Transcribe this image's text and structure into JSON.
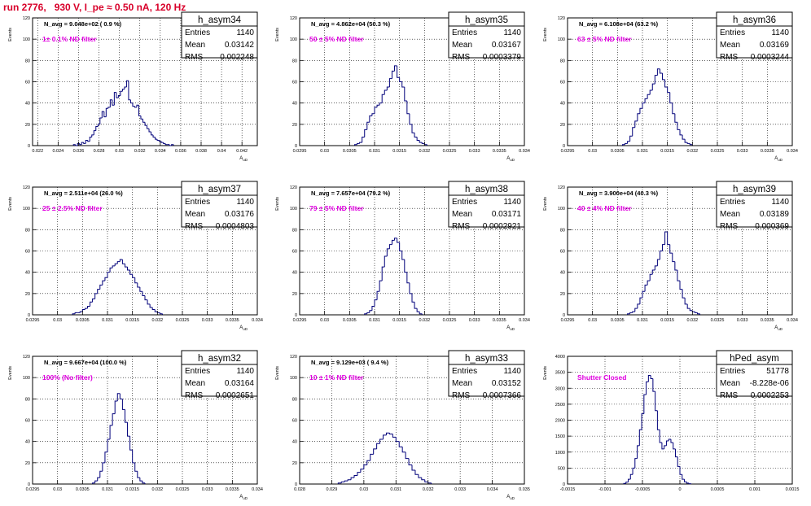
{
  "title": "run 2776,   930 V, I_pe ≈ 0.50 nA, 120 Hz",
  "colors": {
    "title": "#d8002a",
    "annotation": "#e000e0",
    "histogram": "#00007a",
    "grid": "#000000"
  },
  "chart_data": [
    {
      "type": "histogram",
      "name": "h_asym34",
      "navg": "N_avg = 9.048e+02 ( 0.9 %)",
      "filter": "1± 0.1% ND filter",
      "stats": {
        "entries": "1140",
        "mean": "0.03142",
        "rms": "0.002248"
      },
      "xlabel": "A_uD",
      "ylabel": "Events",
      "xlim": [
        0.0215,
        0.0435
      ],
      "ylim": [
        0,
        120
      ],
      "xticks": [
        0.022,
        0.024,
        0.026,
        0.028,
        0.03,
        0.032,
        0.034,
        0.036,
        0.038,
        0.04,
        0.042
      ],
      "xtick_labels": [
        "0.022",
        "0.024",
        "0.026",
        "0.028",
        "0.03",
        "0.032",
        "0.034",
        "0.036",
        "0.038",
        "0.04",
        "0.042"
      ],
      "yticks": [
        0,
        20,
        40,
        60,
        80,
        100,
        120
      ],
      "bins": {
        "start": 0.0255,
        "width": 0.0002,
        "counts": [
          1,
          0,
          2,
          1,
          3,
          2,
          5,
          4,
          8,
          10,
          14,
          18,
          20,
          26,
          32,
          27,
          35,
          36,
          43,
          38,
          50,
          45,
          47,
          51,
          53,
          55,
          61,
          43,
          40,
          37,
          36,
          38,
          28,
          25,
          22,
          19,
          16,
          13,
          10,
          8,
          6,
          5,
          4,
          3,
          2,
          1,
          1,
          0,
          1
        ]
      }
    },
    {
      "type": "histogram",
      "name": "h_asym35",
      "navg": "N_avg = 4.862e+04 (50.3 %)",
      "filter": "50 ± 5% ND filter",
      "stats": {
        "entries": "1140",
        "mean": "0.03167",
        "rms": "0.0003379"
      },
      "xlabel": "A_uD",
      "ylabel": "Events",
      "xlim": [
        0.0295,
        0.034
      ],
      "ylim": [
        0,
        120
      ],
      "xticks": [
        0.0295,
        0.03,
        0.0305,
        0.031,
        0.0315,
        0.032,
        0.0325,
        0.033,
        0.0335,
        0.034
      ],
      "xtick_labels": [
        "0.0295",
        "0.03",
        "0.0305",
        "0.031",
        "0.0315",
        "0.032",
        "0.0325",
        "0.033",
        "0.0335",
        "0.034"
      ],
      "yticks": [
        0,
        20,
        40,
        60,
        80,
        100,
        120
      ],
      "bins": {
        "start": 0.0306,
        "width": 5e-05,
        "counts": [
          1,
          2,
          3,
          8,
          15,
          22,
          28,
          30,
          36,
          38,
          40,
          48,
          52,
          55,
          63,
          70,
          75,
          64,
          60,
          55,
          42,
          30,
          20,
          12,
          8,
          5,
          3,
          2,
          1
        ]
      }
    },
    {
      "type": "histogram",
      "name": "h_asym36",
      "navg": "N_avg = 6.108e+04 (63.2 %)",
      "filter": "63 ± 5% ND filter",
      "stats": {
        "entries": "1140",
        "mean": "0.03169",
        "rms": "0.0003244"
      },
      "xlabel": "A_uD",
      "ylabel": "Events",
      "xlim": [
        0.0295,
        0.034
      ],
      "ylim": [
        0,
        120
      ],
      "xticks": [
        0.0295,
        0.03,
        0.0305,
        0.031,
        0.0315,
        0.032,
        0.0325,
        0.033,
        0.0335,
        0.034
      ],
      "xtick_labels": [
        "0.0295",
        "0.03",
        "0.0305",
        "0.031",
        "0.0315",
        "0.032",
        "0.0325",
        "0.033",
        "0.0335",
        "0.034"
      ],
      "yticks": [
        0,
        20,
        40,
        60,
        80,
        100,
        120
      ],
      "bins": {
        "start": 0.0306,
        "width": 5e-05,
        "counts": [
          1,
          2,
          4,
          9,
          17,
          23,
          30,
          35,
          40,
          44,
          48,
          52,
          58,
          66,
          72,
          68,
          62,
          55,
          50,
          40,
          30,
          22,
          15,
          10,
          6,
          3,
          2,
          1
        ]
      }
    },
    {
      "type": "histogram",
      "name": "h_asym37",
      "navg": "N_avg = 2.511e+04 (26.0 %)",
      "filter": "25 ± 2.5% ND filter",
      "stats": {
        "entries": "1140",
        "mean": "0.03176",
        "rms": "0.0004803"
      },
      "xlabel": "A_uD",
      "ylabel": "Events",
      "xlim": [
        0.0295,
        0.034
      ],
      "ylim": [
        0,
        120
      ],
      "xticks": [
        0.0295,
        0.03,
        0.0305,
        0.031,
        0.0315,
        0.032,
        0.0325,
        0.033,
        0.0335,
        0.034
      ],
      "xtick_labels": [
        "0.0295",
        "0.03",
        "0.0305",
        "0.031",
        "0.0315",
        "0.032",
        "0.0325",
        "0.033",
        "0.0335",
        "0.034"
      ],
      "yticks": [
        0,
        20,
        40,
        60,
        80,
        100,
        120
      ],
      "bins": {
        "start": 0.0303,
        "width": 5e-05,
        "counts": [
          1,
          2,
          2,
          3,
          5,
          6,
          8,
          12,
          15,
          20,
          24,
          28,
          32,
          35,
          40,
          44,
          46,
          48,
          50,
          52,
          48,
          45,
          42,
          38,
          35,
          30,
          26,
          22,
          18,
          14,
          10,
          7,
          5,
          3,
          2,
          1
        ]
      }
    },
    {
      "type": "histogram",
      "name": "h_asym38",
      "navg": "N_avg = 7.657e+04 (79.2 %)",
      "filter": "79 ± 5% ND filter",
      "stats": {
        "entries": "1140",
        "mean": "0.03171",
        "rms": "0.0002921"
      },
      "xlabel": "A_uD",
      "ylabel": "Events",
      "xlim": [
        0.0295,
        0.034
      ],
      "ylim": [
        0,
        120
      ],
      "xticks": [
        0.0295,
        0.03,
        0.0305,
        0.031,
        0.0315,
        0.032,
        0.0325,
        0.033,
        0.0335,
        0.034
      ],
      "xtick_labels": [
        "0.0295",
        "0.03",
        "0.0305",
        "0.031",
        "0.0315",
        "0.032",
        "0.0325",
        "0.033",
        "0.0335",
        "0.034"
      ],
      "yticks": [
        0,
        20,
        40,
        60,
        80,
        100,
        120
      ],
      "bins": {
        "start": 0.0308,
        "width": 5e-05,
        "counts": [
          1,
          2,
          4,
          8,
          14,
          22,
          32,
          45,
          55,
          62,
          66,
          70,
          72,
          68,
          60,
          52,
          40,
          30,
          20,
          12,
          6,
          3,
          1
        ]
      }
    },
    {
      "type": "histogram",
      "name": "h_asym39",
      "navg": "N_avg = 3.900e+04 (40.3 %)",
      "filter": "40 ± 4% ND filter",
      "stats": {
        "entries": "1140",
        "mean": "0.03189",
        "rms": "0.000369"
      },
      "xlabel": "A_uD",
      "ylabel": "Events",
      "xlim": [
        0.0295,
        0.034
      ],
      "ylim": [
        0,
        120
      ],
      "xticks": [
        0.0295,
        0.03,
        0.0305,
        0.031,
        0.0315,
        0.032,
        0.0325,
        0.033,
        0.0335,
        0.034
      ],
      "xtick_labels": [
        "0.0295",
        "0.03",
        "0.0305",
        "0.031",
        "0.0315",
        "0.032",
        "0.0325",
        "0.033",
        "0.0335",
        "0.034"
      ],
      "yticks": [
        0,
        20,
        40,
        60,
        80,
        100,
        120
      ],
      "bins": {
        "start": 0.0307,
        "width": 5e-05,
        "counts": [
          1,
          2,
          3,
          6,
          10,
          16,
          22,
          28,
          32,
          38,
          42,
          46,
          52,
          60,
          66,
          78,
          66,
          58,
          50,
          42,
          32,
          24,
          16,
          10,
          6,
          4,
          3,
          2,
          1
        ]
      }
    },
    {
      "type": "histogram",
      "name": "h_asym32",
      "navg": "N_avg = 9.667e+04 (100.0 %)",
      "filter": "100% (No filter)",
      "stats": {
        "entries": "1140",
        "mean": "0.03164",
        "rms": "0.0002651"
      },
      "xlabel": "A_uD",
      "ylabel": "Events",
      "xlim": [
        0.0295,
        0.034
      ],
      "ylim": [
        0,
        120
      ],
      "xticks": [
        0.0295,
        0.03,
        0.0305,
        0.031,
        0.0315,
        0.032,
        0.0325,
        0.033,
        0.0335,
        0.034
      ],
      "xtick_labels": [
        "0.0295",
        "0.03",
        "0.0305",
        "0.031",
        "0.0315",
        "0.032",
        "0.0325",
        "0.033",
        "0.0335",
        "0.034"
      ],
      "yticks": [
        0,
        20,
        40,
        60,
        80,
        100,
        120
      ],
      "bins": {
        "start": 0.0307,
        "width": 5e-05,
        "counts": [
          1,
          3,
          6,
          12,
          20,
          30,
          42,
          55,
          66,
          78,
          85,
          80,
          70,
          58,
          45,
          32,
          20,
          12,
          6,
          3,
          1
        ]
      }
    },
    {
      "type": "histogram",
      "name": "h_asym33",
      "navg": "N_avg = 9.129e+03 ( 9.4 %)",
      "filter": "10 ± 1% ND filter",
      "stats": {
        "entries": "1140",
        "mean": "0.03152",
        "rms": "0.0007366"
      },
      "xlabel": "A_uD",
      "ylabel": "Events",
      "xlim": [
        0.028,
        0.035
      ],
      "ylim": [
        0,
        120
      ],
      "xticks": [
        0.028,
        0.029,
        0.03,
        0.031,
        0.032,
        0.033,
        0.034,
        0.035
      ],
      "xtick_labels": [
        "0.028",
        "0.029",
        "0.03",
        "0.031",
        "0.032",
        "0.033",
        "0.034",
        "0.035"
      ],
      "yticks": [
        0,
        20,
        40,
        60,
        80,
        100,
        120
      ],
      "bins": {
        "start": 0.0292,
        "width": 0.0001,
        "counts": [
          1,
          2,
          3,
          4,
          6,
          8,
          11,
          14,
          18,
          22,
          28,
          33,
          38,
          42,
          46,
          48,
          47,
          44,
          40,
          35,
          30,
          24,
          18,
          13,
          9,
          6,
          4,
          2,
          1
        ]
      }
    },
    {
      "type": "histogram",
      "name": "hPed_asym",
      "navg": "",
      "filter": "Shutter Closed",
      "stats": {
        "entries": "51778",
        "mean": "-8.228e-06",
        "rms": "0.0002253"
      },
      "xlabel": "",
      "ylabel": "Events",
      "xlim": [
        -0.0015,
        0.0015
      ],
      "ylim": [
        0,
        4000
      ],
      "xticks": [
        -0.0015,
        -0.001,
        -0.0005,
        0,
        0.0005,
        0.001,
        0.0015
      ],
      "xtick_labels": [
        "-0.0015",
        "-0.001",
        "-0.0005",
        "0",
        "0.0005",
        "0.001",
        "0.0015"
      ],
      "yticks": [
        0,
        500,
        1000,
        1500,
        2000,
        2500,
        3000,
        3500,
        4000
      ],
      "bins": {
        "start": -0.00075,
        "width": 3e-05,
        "counts": [
          20,
          60,
          150,
          300,
          500,
          800,
          1200,
          1700,
          2200,
          2800,
          3200,
          3400,
          3300,
          2900,
          2300,
          1700,
          1300,
          1100,
          1200,
          1350,
          1400,
          1300,
          1100,
          850,
          550,
          300,
          150,
          70,
          30,
          10
        ]
      }
    }
  ]
}
